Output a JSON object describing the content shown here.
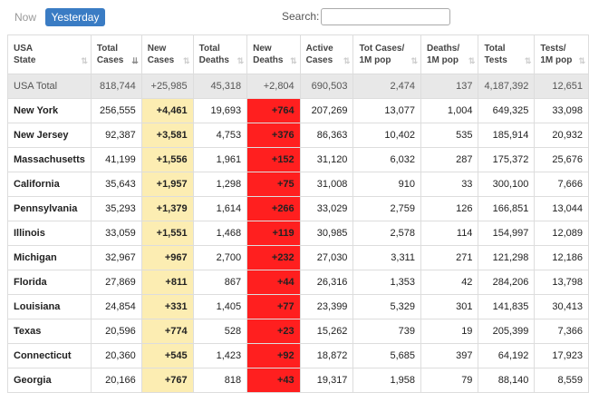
{
  "toolbar": {
    "now_label": "Now",
    "yesterday_label": "Yesterday"
  },
  "search": {
    "label": "Search:",
    "value": "",
    "placeholder": ""
  },
  "columns": [
    {
      "l1": "USA",
      "l2": "State"
    },
    {
      "l1": "Total",
      "l2": "Cases"
    },
    {
      "l1": "New",
      "l2": "Cases"
    },
    {
      "l1": "Total",
      "l2": "Deaths"
    },
    {
      "l1": "New",
      "l2": "Deaths"
    },
    {
      "l1": "Active",
      "l2": "Cases"
    },
    {
      "l1": "Tot Cases/",
      "l2": "1M pop"
    },
    {
      "l1": "Deaths/",
      "l2": "1M pop"
    },
    {
      "l1": "Total",
      "l2": "Tests"
    },
    {
      "l1": "Tests/",
      "l2": "1M pop"
    }
  ],
  "sort_icons": {
    "inactive": "⇅",
    "active": "⇊"
  },
  "total_row": [
    "USA Total",
    "818,744",
    "+25,985",
    "45,318",
    "+2,804",
    "690,503",
    "2,474",
    "137",
    "4,187,392",
    "12,651"
  ],
  "rows": [
    [
      "New York",
      "256,555",
      "+4,461",
      "19,693",
      "+764",
      "207,269",
      "13,077",
      "1,004",
      "649,325",
      "33,098"
    ],
    [
      "New Jersey",
      "92,387",
      "+3,581",
      "4,753",
      "+376",
      "86,363",
      "10,402",
      "535",
      "185,914",
      "20,932"
    ],
    [
      "Massachusetts",
      "41,199",
      "+1,556",
      "1,961",
      "+152",
      "31,120",
      "6,032",
      "287",
      "175,372",
      "25,676"
    ],
    [
      "California",
      "35,643",
      "+1,957",
      "1,298",
      "+75",
      "31,008",
      "910",
      "33",
      "300,100",
      "7,666"
    ],
    [
      "Pennsylvania",
      "35,293",
      "+1,379",
      "1,614",
      "+266",
      "33,029",
      "2,759",
      "126",
      "166,851",
      "13,044"
    ],
    [
      "Illinois",
      "33,059",
      "+1,551",
      "1,468",
      "+119",
      "30,985",
      "2,578",
      "114",
      "154,997",
      "12,089"
    ],
    [
      "Michigan",
      "32,967",
      "+967",
      "2,700",
      "+232",
      "27,030",
      "3,311",
      "271",
      "121,298",
      "12,186"
    ],
    [
      "Florida",
      "27,869",
      "+811",
      "867",
      "+44",
      "26,316",
      "1,353",
      "42",
      "284,206",
      "13,798"
    ],
    [
      "Louisiana",
      "24,854",
      "+331",
      "1,405",
      "+77",
      "23,399",
      "5,329",
      "301",
      "141,835",
      "30,413"
    ],
    [
      "Texas",
      "20,596",
      "+774",
      "528",
      "+23",
      "15,262",
      "739",
      "19",
      "205,399",
      "7,366"
    ],
    [
      "Connecticut",
      "20,360",
      "+545",
      "1,423",
      "+92",
      "18,872",
      "5,685",
      "397",
      "64,192",
      "17,923"
    ],
    [
      "Georgia",
      "20,166",
      "+767",
      "818",
      "+43",
      "19,317",
      "1,958",
      "79",
      "88,140",
      "8,559"
    ]
  ],
  "colors": {
    "yesterday_button": "#3a7cc4",
    "new_cases_bg": "#fcedb2",
    "new_deaths_bg": "#ff1f1f",
    "total_row_bg": "#e8e8e8"
  }
}
